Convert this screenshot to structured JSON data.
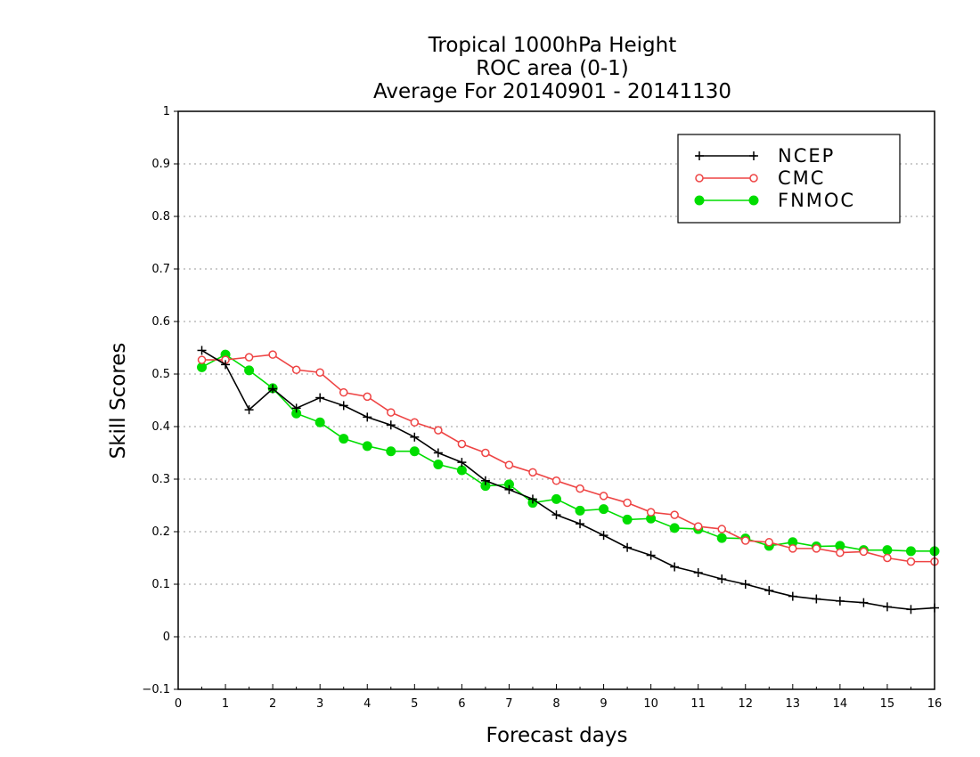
{
  "chart_data": {
    "type": "line",
    "title_lines": [
      "Tropical 1000hPa Height",
      "ROC area (0-1)",
      "Average For 20140901 - 20141130"
    ],
    "xlabel": "Forecast days",
    "ylabel": "Skill Scores",
    "xlim": [
      0,
      16
    ],
    "ylim": [
      -0.1,
      1
    ],
    "x_ticks": [
      "0",
      "1",
      "2",
      "3",
      "4",
      "5",
      "6",
      "7",
      "8",
      "9",
      "10",
      "11",
      "12",
      "13",
      "14",
      "15",
      "16"
    ],
    "y_ticks": [
      "−0.1",
      "0",
      "0.1",
      "0.2",
      "0.3",
      "0.4",
      "0.5",
      "0.6",
      "0.7",
      "0.8",
      "0.9",
      "1"
    ],
    "y_tick_values": [
      -0.1,
      0,
      0.1,
      0.2,
      0.3,
      0.4,
      0.5,
      0.6,
      0.7,
      0.8,
      0.9,
      1
    ],
    "grid": "horizontal dotted",
    "legend_position": "top-right",
    "x": [
      0.5,
      1,
      1.5,
      2,
      2.5,
      3,
      3.5,
      4,
      4.5,
      5,
      5.5,
      6,
      6.5,
      7,
      7.5,
      8,
      8.5,
      9,
      9.5,
      10,
      10.5,
      11,
      11.5,
      12,
      12.5,
      13,
      13.5,
      14,
      14.5,
      15,
      15.5,
      16
    ],
    "series": [
      {
        "name": "NCEP",
        "color": "#000000",
        "marker": "plus",
        "values": [
          0.545,
          0.518,
          0.432,
          0.472,
          0.435,
          0.455,
          0.44,
          0.418,
          0.403,
          0.38,
          0.35,
          0.332,
          0.297,
          0.28,
          0.262,
          0.232,
          0.215,
          0.193,
          0.17,
          0.155,
          0.133,
          0.122,
          0.11,
          0.1,
          0.088,
          0.077,
          0.072,
          0.068,
          0.065,
          0.057,
          0.052,
          0.055
        ]
      },
      {
        "name": "CMC",
        "color": "#ee4444",
        "marker": "open-circle",
        "values": [
          0.527,
          0.527,
          0.532,
          0.537,
          0.508,
          0.503,
          0.465,
          0.457,
          0.427,
          0.408,
          0.393,
          0.367,
          0.35,
          0.327,
          0.313,
          0.297,
          0.282,
          0.268,
          0.255,
          0.237,
          0.232,
          0.21,
          0.205,
          0.183,
          0.18,
          0.168,
          0.168,
          0.16,
          0.162,
          0.15,
          0.143,
          0.143
        ]
      },
      {
        "name": "FNMOC",
        "color": "#00dd00",
        "marker": "filled-circle",
        "values": [
          0.513,
          0.537,
          0.507,
          0.473,
          0.425,
          0.408,
          0.377,
          0.363,
          0.353,
          0.353,
          0.328,
          0.317,
          0.287,
          0.29,
          0.255,
          0.262,
          0.24,
          0.243,
          0.223,
          0.225,
          0.207,
          0.205,
          0.188,
          0.187,
          0.173,
          0.18,
          0.172,
          0.173,
          0.165,
          0.165,
          0.163,
          0.163
        ]
      }
    ]
  }
}
